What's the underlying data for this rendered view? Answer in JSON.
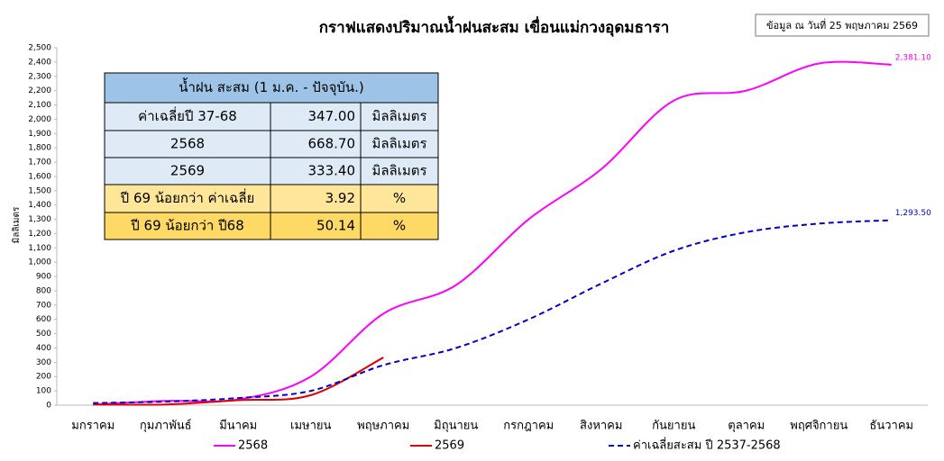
{
  "chart_data": {
    "type": "line",
    "title": "กราฟแสดงปริมาณน้ำฝนสะสม เขื่อนแม่กวงอุดมธารา",
    "y_label": "มิลลิเมตร",
    "categories": [
      "มกราคม",
      "กุมภาพันธ์",
      "มีนาคม",
      "เมษายน",
      "พฤษภาคม",
      "มิถุนายน",
      "กรกฎาคม",
      "สิงหาคม",
      "กันยายน",
      "ตุลาคม",
      "พฤศจิกายน",
      "ธันวาคม"
    ],
    "series": [
      {
        "name": "2568",
        "color": "#ff00ff",
        "dashed": false,
        "values": [
          5,
          30,
          40,
          200,
          640,
          840,
          1300,
          1650,
          2130,
          2200,
          2390,
          2381.1
        ],
        "value_labels": [
          null,
          null,
          null,
          null,
          null,
          null,
          null,
          null,
          null,
          null,
          null,
          "2,381.10"
        ]
      },
      {
        "name": "2569",
        "color": "#e00000",
        "dashed": false,
        "values": [
          5,
          5,
          35,
          70,
          333.4,
          null,
          null,
          null,
          null,
          null,
          null,
          null
        ]
      },
      {
        "name": "ค่าเฉลี่ยสะสม ปี  2537-2568",
        "color": "#0000cc",
        "dashed": true,
        "values": [
          15,
          25,
          50,
          100,
          280,
          400,
          600,
          850,
          1080,
          1210,
          1270,
          1293.5
        ],
        "value_labels": [
          null,
          null,
          null,
          null,
          null,
          null,
          null,
          null,
          null,
          null,
          null,
          "1,293.50"
        ]
      }
    ],
    "ylim": [
      0,
      2500
    ],
    "yticks": [
      0,
      100,
      200,
      300,
      400,
      500,
      600,
      700,
      800,
      900,
      {
        "value": 1000,
        "label": "1,000"
      },
      {
        "value": 1100,
        "label": "1,100"
      },
      {
        "value": 1200,
        "label": "1,200"
      },
      {
        "value": 1300,
        "label": "1,300"
      },
      {
        "value": 1400,
        "label": "1,400"
      },
      {
        "value": 1500,
        "label": "1,500"
      },
      {
        "value": 1600,
        "label": "1,600"
      },
      {
        "value": 1700,
        "label": "1,700"
      },
      {
        "value": 1800,
        "label": "1,800"
      },
      {
        "value": 1900,
        "label": "1,900"
      },
      {
        "value": 2000,
        "label": "2,000"
      },
      {
        "value": 2100,
        "label": "2,100"
      },
      {
        "value": 2200,
        "label": "2,200"
      },
      {
        "value": 2300,
        "label": "2,300"
      },
      {
        "value": 2400,
        "label": "2,400"
      },
      {
        "value": 2500,
        "label": "2,500"
      }
    ],
    "grid": false,
    "legend": "bottom"
  },
  "note": "ข้อมูล ณ วันที่ 25 พฤษภาคม 2569",
  "table": {
    "header": "น้ำฝน สะสม (1 ม.ค. - ปัจจุบัน.)",
    "rows": [
      [
        "ค่าเฉลี่ยปี 37-68",
        "347.00",
        "มิลลิเมตร"
      ],
      [
        "2568",
        "668.70",
        "มิลลิเมตร"
      ],
      [
        "2569",
        "333.40",
        "มิลลิเมตร"
      ],
      [
        "ปี 69 น้อยกว่า ค่าเฉลี่ย",
        "3.92",
        "%"
      ],
      [
        "ปี 69 น้อยกว่า ปี68",
        "50.14",
        "%"
      ]
    ]
  }
}
